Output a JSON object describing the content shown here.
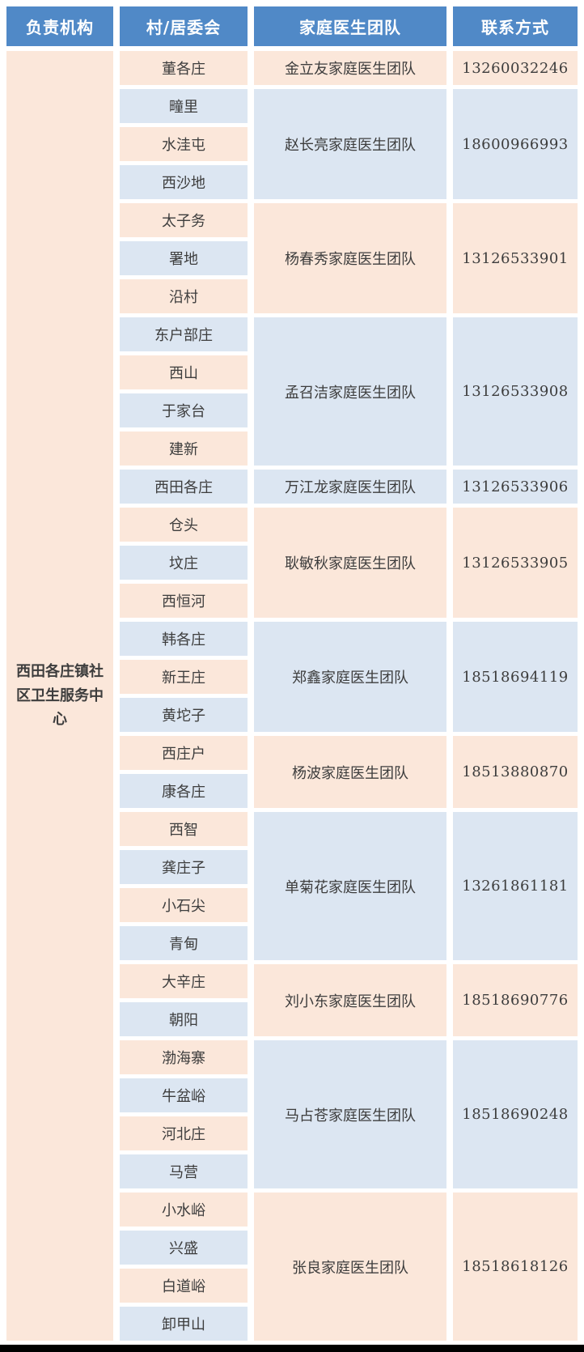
{
  "colors": {
    "headerBlue": "#5089C7",
    "lightBlue": "#DCE6F2",
    "peach": "#FBE7DA",
    "textDark": "#3d3d3d",
    "barBlack": "#000000"
  },
  "header": {
    "cols": [
      "负责机构",
      "村/居委会",
      "家庭医生团队",
      "联系方式"
    ]
  },
  "institution": "西田各庄镇社区卫生服务中心",
  "groups": [
    {
      "villages": [
        "董各庄"
      ],
      "team": "金立友家庭医生团队",
      "phone": "13260032246",
      "tone": "peach"
    },
    {
      "villages": [
        "疃里",
        "水洼屯",
        "西沙地"
      ],
      "team": "赵长亮家庭医生团队",
      "phone": "18600966993",
      "tone": "blue"
    },
    {
      "villages": [
        "太子务",
        "署地",
        "沿村"
      ],
      "team": "杨春秀家庭医生团队",
      "phone": "13126533901",
      "tone": "peach"
    },
    {
      "villages": [
        "东户部庄",
        "西山",
        "于家台",
        "建新"
      ],
      "team": "孟召洁家庭医生团队",
      "phone": "13126533908",
      "tone": "blue"
    },
    {
      "villages": [
        "西田各庄"
      ],
      "team": "万江龙家庭医生团队",
      "phone": "13126533906",
      "tone": "blue"
    },
    {
      "villages": [
        "仓头",
        "坟庄",
        "西恒河"
      ],
      "team": "耿敏秋家庭医生团队",
      "phone": "13126533905",
      "tone": "peach"
    },
    {
      "villages": [
        "韩各庄",
        "新王庄",
        "黄坨子"
      ],
      "team": "郑鑫家庭医生团队",
      "phone": "18518694119",
      "tone": "blue"
    },
    {
      "villages": [
        "西庄户",
        "康各庄"
      ],
      "team": "杨波家庭医生团队",
      "phone": "18513880870",
      "tone": "peach"
    },
    {
      "villages": [
        "西智",
        "龚庄子",
        "小石尖",
        "青甸"
      ],
      "team": "单菊花家庭医生团队",
      "phone": "13261861181",
      "tone": "blue"
    },
    {
      "villages": [
        "大辛庄",
        "朝阳"
      ],
      "team": "刘小东家庭医生团队",
      "phone": "18518690776",
      "tone": "peach"
    },
    {
      "villages": [
        "渤海寨",
        "牛盆峪",
        "河北庄",
        "马营"
      ],
      "team": "马占苍家庭医生团队",
      "phone": "18518690248",
      "tone": "blue"
    },
    {
      "villages": [
        "小水峪",
        "兴盛",
        "白道峪",
        "卸甲山"
      ],
      "team": "张良家庭医生团队",
      "phone": "18518618126",
      "tone": "peach"
    }
  ]
}
